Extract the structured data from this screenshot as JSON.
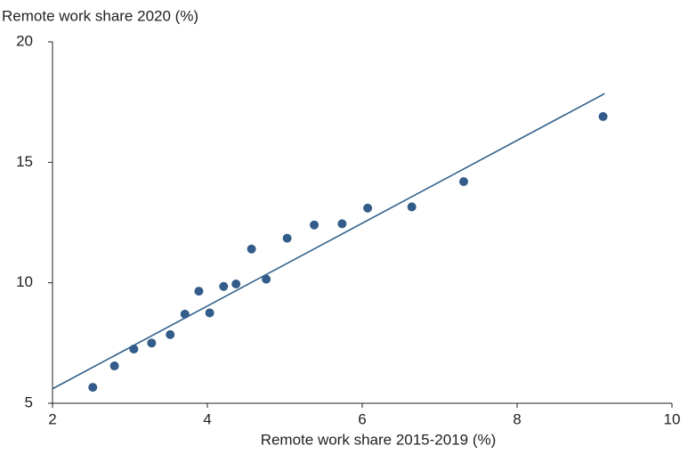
{
  "chart_data": {
    "type": "scatter",
    "y_axis_label": "Remote work share 2020 (%)",
    "x_axis_label": "Remote work share 2015-2019 (%)",
    "x": [
      2.52,
      2.8,
      3.05,
      3.28,
      3.52,
      3.71,
      3.89,
      4.03,
      4.21,
      4.37,
      4.57,
      4.76,
      5.03,
      5.38,
      5.74,
      6.07,
      6.64,
      7.31,
      9.11
    ],
    "values": [
      5.66,
      6.55,
      7.25,
      7.5,
      7.85,
      8.7,
      9.65,
      8.75,
      9.85,
      9.95,
      11.4,
      10.15,
      11.85,
      12.4,
      12.45,
      13.1,
      13.15,
      14.2,
      16.9
    ],
    "color": "#335c8a",
    "trendline": {
      "x": [
        2,
        9.13
      ],
      "y": [
        5.6,
        17.85
      ],
      "color": "#2f5f8a"
    },
    "xlim": [
      2,
      10
    ],
    "xticks": [
      2,
      4,
      6,
      8,
      10
    ],
    "ylim": [
      5,
      20
    ],
    "yticks": [
      5,
      10,
      15,
      20
    ]
  }
}
